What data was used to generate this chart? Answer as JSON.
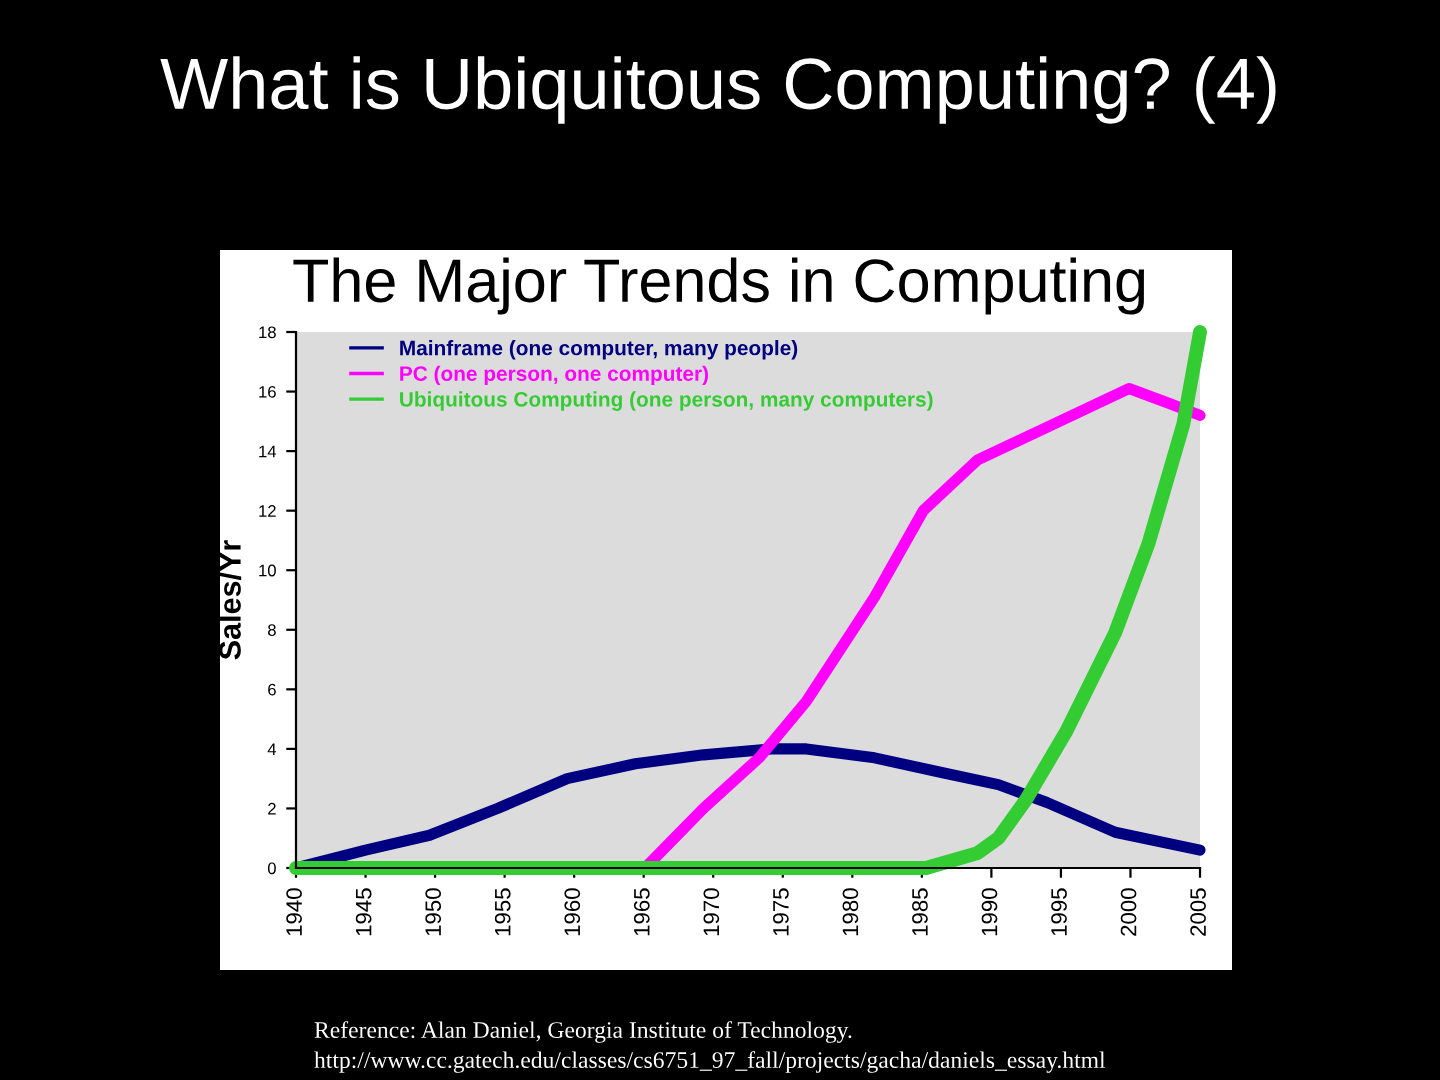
{
  "chart_data": {
    "type": "line",
    "title": "What is Ubiquitous Computing? (4)",
    "subtitle": "The Major Trends in Computing",
    "ylabel": "Sales/Yr",
    "annotations": [
      "Reference: Alan Daniel, Georgia Institute of Technology.",
      "http://www.cc.gatech.edu/classes/cs6751_97_fall/projects/gacha/daniels_essay.html"
    ],
    "xlim": [
      1940,
      2005
    ],
    "xticks": [
      1940,
      1945,
      1950,
      1955,
      1960,
      1965,
      1970,
      1975,
      1980,
      1985,
      1990,
      1995,
      2000,
      2005
    ],
    "ylim": [
      0,
      18
    ],
    "yticks": [
      0,
      2,
      4,
      6,
      8,
      10,
      12,
      14,
      16,
      18
    ],
    "grid": false,
    "legend": "top left",
    "marker": "none",
    "line_style": "solid",
    "series": [
      {
        "name": "Mainframe (one computer, many people)",
        "color": "#000080",
        "x": [
          1940,
          1945,
          1949.6,
          1954.5,
          1959.5,
          1964.4,
          1969.3,
          1974.2,
          1976.7,
          1981.6,
          1986.5,
          1990.5,
          1994,
          1998.9,
          2005
        ],
        "values": [
          0,
          0.6,
          1.1,
          2.0,
          3.0,
          3.5,
          3.8,
          4.0,
          4.0,
          3.7,
          3.2,
          2.8,
          2.2,
          1.2,
          0.6
        ]
      },
      {
        "name": "PC (one person, one computer)",
        "color": "#ff00ff",
        "x": [
          1965.1,
          1969.3,
          1973.3,
          1976.7,
          1981.6,
          1985.1,
          1989,
          1994,
          1999.9,
          2002.8,
          2005
        ],
        "values": [
          0,
          2.0,
          3.7,
          5.6,
          9.1,
          12.0,
          13.7,
          14.8,
          16.1,
          15.6,
          15.2
        ]
      },
      {
        "name": "Ubiquitous Computing (one person, many computers)",
        "color": "#33cc33",
        "x": [
          1940,
          1985.3,
          1989,
          1990.5,
          1992.5,
          1995.4,
          1998.9,
          2001.3,
          2003.8,
          2005
        ],
        "values": [
          0,
          0,
          0.5,
          1.0,
          2.3,
          4.6,
          7.9,
          10.9,
          14.9,
          18
        ]
      }
    ]
  }
}
